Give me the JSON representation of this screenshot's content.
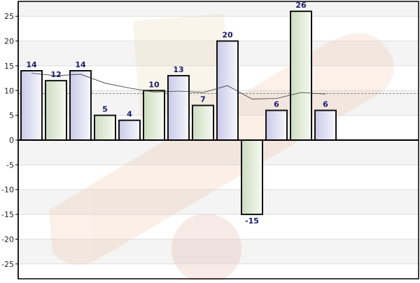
{
  "chart_data": {
    "type": "bar",
    "title": "",
    "xlabel": "",
    "ylabel": "",
    "ylim": [
      -28,
      28
    ],
    "yticks": [
      -25,
      -20,
      -15,
      -10,
      -5,
      0,
      5,
      10,
      15,
      20,
      25
    ],
    "values": [
      14,
      12,
      14,
      5,
      4,
      10,
      13,
      7,
      20,
      -15,
      6,
      26,
      6
    ],
    "data_labels": [
      "14",
      "12",
      "14",
      "5",
      "4",
      "10",
      "13",
      "7",
      "20",
      "-15",
      "6",
      "26",
      "6"
    ],
    "moving_average": [
      13.5,
      13,
      13.3,
      11.5,
      10.5,
      9.7,
      9.9,
      9.6,
      11,
      8.3,
      8.4,
      9.6,
      9.3
    ],
    "mean_line": 9.4,
    "grid": true,
    "legend": "none",
    "colors": {
      "bar_odd_fill": "#e1e1f2",
      "bar_even_fill": "#e3eddb",
      "bar_stroke": "#111111",
      "label": "#1a1a6e",
      "band_alt": "#f4f4f4",
      "grid_line": "#dddddd",
      "axis": "#000000",
      "mean_line": "#888888",
      "trend_line": "#333333"
    }
  }
}
